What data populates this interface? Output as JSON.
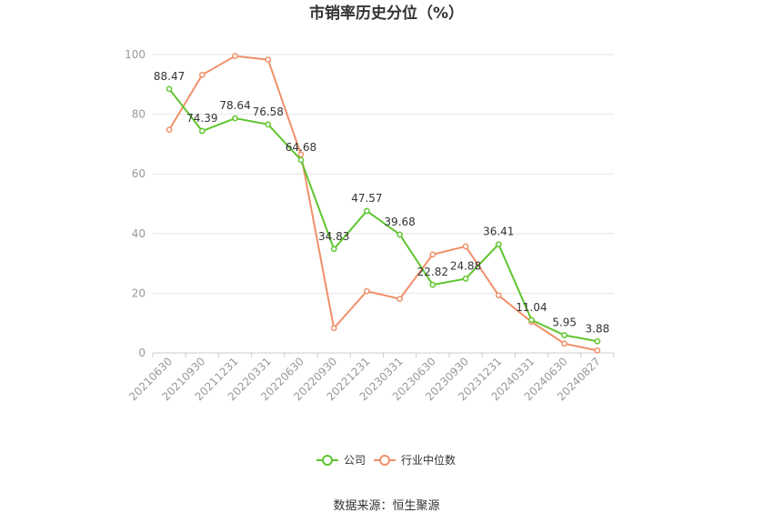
{
  "chart_data": {
    "type": "line",
    "title": "市销率历史分位（%）",
    "categories": [
      "20210630",
      "20210930",
      "20211231",
      "20220331",
      "20220630",
      "20220930",
      "20221231",
      "20230331",
      "20230630",
      "20230930",
      "20231231",
      "20240331",
      "20240630",
      "20240827"
    ],
    "series": [
      {
        "name": "公司",
        "color": "#5fc52e",
        "values": [
          88.47,
          74.39,
          78.64,
          76.58,
          64.68,
          34.83,
          47.57,
          39.68,
          22.82,
          24.88,
          36.41,
          11.04,
          5.95,
          3.88
        ],
        "labels": [
          "88.47",
          "74.39",
          "78.64",
          "76.58",
          "64.68",
          "34.83",
          "47.57",
          "39.68",
          "22.82",
          "24.88",
          "36.41",
          "11.04",
          "5.95",
          "3.88"
        ]
      },
      {
        "name": "行业中位数",
        "color": "#f0906a",
        "values": [
          74.8,
          93.2,
          99.5,
          98.3,
          66.5,
          8.3,
          20.7,
          18.1,
          33.0,
          35.7,
          19.3,
          10.4,
          3.1,
          0.8
        ]
      }
    ],
    "y_ticks": [
      "0",
      "20",
      "40",
      "60",
      "80",
      "100"
    ],
    "ylim": [
      0,
      100
    ],
    "grid": true,
    "legend_position": "bottom"
  },
  "source_text": "数据来源：恒生聚源"
}
